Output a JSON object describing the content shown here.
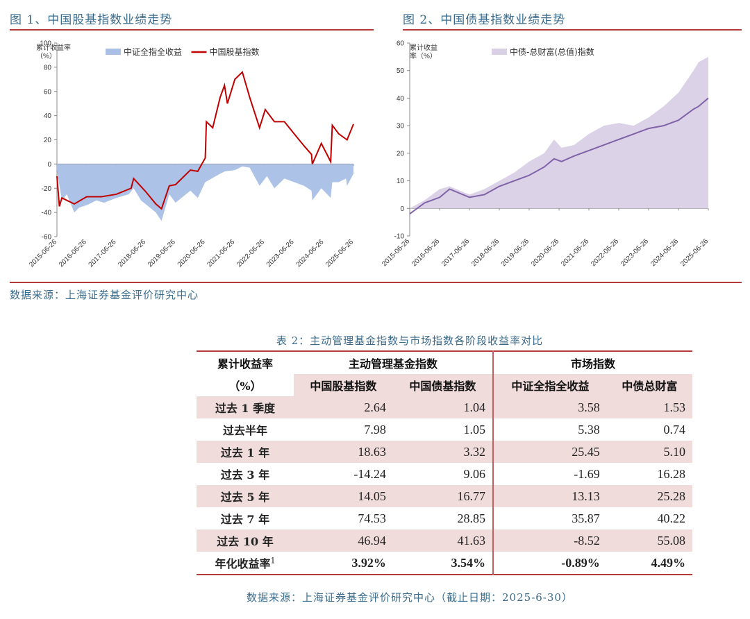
{
  "figure1": {
    "title": "图 1、中国股基指数业绩走势",
    "ylabel_line1": "累计收益率",
    "ylabel_line2": "（%）",
    "legend": [
      "中证全指全收益",
      "中国股基指数"
    ]
  },
  "figure2": {
    "title": "图 2、中国债基指数业绩走势",
    "ylabel_line1": "累计收益",
    "ylabel_line2": "率（%）",
    "legend": [
      "中债-总财富(总值)指数"
    ]
  },
  "source_top": "数据来源：上海证券基金评价研究中心",
  "colors": {
    "accent_red": "#b53a3a",
    "title_blue": "#3a6b8c",
    "csi_fill": "#a9bfe6",
    "fund_line": "#c00000",
    "bond_fill": "#d9d0e6",
    "bond_line": "#7f62a8",
    "row_shade": "#f1dcdc"
  },
  "chart_data": [
    {
      "type": "area",
      "title": "图 1、中国股基指数业绩走势",
      "ylabel": "累计收益率（%）",
      "ylim": [
        -60,
        100
      ],
      "yticks": [
        -60,
        -40,
        -20,
        0,
        20,
        40,
        60,
        80,
        100
      ],
      "x_ticks": [
        "2015-06-26",
        "2016-06-26",
        "2017-06-26",
        "2018-06-26",
        "2019-06-26",
        "2020-06-26",
        "2021-06-26",
        "2022-06-26",
        "2023-06-26",
        "2024-06-26",
        "2025-06-26"
      ],
      "legend_position": "top",
      "series": [
        {
          "name": "中证全指全收益",
          "kind": "area",
          "x": [
            "2015-06-26",
            "2015-08-26",
            "2015-10-26",
            "2016-01-26",
            "2016-03-26",
            "2016-06-26",
            "2016-10-26",
            "2017-01-26",
            "2017-06-26",
            "2017-11-26",
            "2018-01-26",
            "2018-04-26",
            "2018-07-26",
            "2018-10-26",
            "2019-01-04",
            "2019-04-10",
            "2019-06-26",
            "2019-12-26",
            "2020-03-26",
            "2020-06-26",
            "2020-12-26",
            "2021-02-26",
            "2021-06-26",
            "2021-09-26",
            "2021-12-26",
            "2022-04-26",
            "2022-07-26",
            "2022-10-26",
            "2023-02-26",
            "2023-06-26",
            "2023-10-26",
            "2024-01-26",
            "2024-02-05",
            "2024-05-26",
            "2024-09-18",
            "2024-10-08",
            "2024-12-26",
            "2025-03-26",
            "2025-04-08",
            "2025-06-26"
          ],
          "values": [
            -5,
            -30,
            -25,
            -40,
            -36,
            -34,
            -30,
            -32,
            -28,
            -25,
            -20,
            -30,
            -35,
            -40,
            -47,
            -25,
            -32,
            -22,
            -28,
            -15,
            -8,
            -6,
            -5,
            -2,
            -3,
            -18,
            -10,
            -20,
            -12,
            -15,
            -18,
            -22,
            -30,
            -20,
            -28,
            -15,
            -15,
            -12,
            -18,
            -8
          ]
        },
        {
          "name": "中国股基指数",
          "kind": "line",
          "x": [
            "2015-06-26",
            "2015-07-26",
            "2015-08-26",
            "2015-10-26",
            "2016-01-26",
            "2016-06-26",
            "2016-12-26",
            "2017-06-26",
            "2017-12-26",
            "2018-01-26",
            "2018-06-26",
            "2018-10-26",
            "2019-01-04",
            "2019-04-10",
            "2019-06-26",
            "2019-12-26",
            "2020-03-26",
            "2020-06-26",
            "2020-07-10",
            "2020-09-26",
            "2020-12-26",
            "2021-02-18",
            "2021-03-26",
            "2021-06-26",
            "2021-09-26",
            "2021-12-26",
            "2022-04-26",
            "2022-07-05",
            "2022-10-26",
            "2023-02-26",
            "2023-06-26",
            "2023-10-26",
            "2024-01-26",
            "2024-02-05",
            "2024-05-26",
            "2024-09-18",
            "2024-10-08",
            "2024-12-26",
            "2025-04-08",
            "2025-06-26"
          ],
          "values": [
            -10,
            -35,
            -28,
            -30,
            -33,
            -27,
            -27,
            -25,
            -20,
            -12,
            -23,
            -33,
            -37,
            -18,
            -17,
            -5,
            -6,
            5,
            35,
            30,
            55,
            65,
            50,
            70,
            76,
            55,
            30,
            45,
            35,
            35,
            25,
            15,
            8,
            0,
            17,
            2,
            32,
            25,
            20,
            33
          ]
        }
      ]
    },
    {
      "type": "area",
      "title": "图 2、中国债基指数业绩走势",
      "ylabel": "累计收益率（%）",
      "ylim": [
        -10,
        60
      ],
      "yticks": [
        -10,
        0,
        10,
        20,
        30,
        40,
        50,
        60
      ],
      "x_ticks": [
        "2015-06-26",
        "2016-06-26",
        "2017-06-26",
        "2018-06-26",
        "2019-06-26",
        "2020-06-26",
        "2021-06-26",
        "2022-06-26",
        "2023-06-26",
        "2024-06-26",
        "2025-06-26"
      ],
      "legend_position": "top",
      "series": [
        {
          "name": "中债-总财富(总值)指数",
          "kind": "area",
          "x": [
            "2015-06-26",
            "2015-12-26",
            "2016-06-26",
            "2016-10-26",
            "2017-06-26",
            "2017-12-26",
            "2018-06-26",
            "2018-12-26",
            "2019-06-26",
            "2019-12-26",
            "2020-04-26",
            "2020-07-26",
            "2020-12-26",
            "2021-06-26",
            "2021-12-26",
            "2022-06-26",
            "2022-12-26",
            "2023-06-26",
            "2023-12-26",
            "2024-06-26",
            "2024-12-26",
            "2025-02-26",
            "2025-06-26"
          ],
          "values": [
            0,
            3,
            7,
            8,
            5,
            7,
            10,
            13,
            17,
            20,
            25,
            22,
            23,
            27,
            30,
            31,
            30,
            33,
            37,
            42,
            50,
            53,
            55
          ]
        },
        {
          "name": "",
          "kind": "line",
          "x": [
            "2015-06-26",
            "2015-12-26",
            "2016-06-26",
            "2016-10-26",
            "2017-06-26",
            "2017-12-26",
            "2018-06-26",
            "2018-12-26",
            "2019-06-26",
            "2019-12-26",
            "2020-04-26",
            "2020-07-26",
            "2020-12-26",
            "2021-06-26",
            "2021-12-26",
            "2022-06-26",
            "2022-12-26",
            "2023-06-26",
            "2023-12-26",
            "2024-06-26",
            "2024-12-26",
            "2025-02-26",
            "2025-06-26"
          ],
          "values": [
            -2,
            2,
            4,
            7,
            4,
            5,
            8,
            10,
            12,
            15,
            18,
            17,
            19,
            21,
            23,
            25,
            27,
            29,
            30,
            32,
            36,
            37,
            40
          ]
        }
      ]
    }
  ],
  "table": {
    "title": "表 2：主动管理基金指数与市场指数各阶段收益率对比",
    "corner_line1": "累计收益率",
    "corner_line2": "（%）",
    "group_active": "主动管理基金指数",
    "group_market": "市场指数",
    "cols": [
      "中国股基指数",
      "中国债基指数",
      "中证全指全收益",
      "中债总财富"
    ],
    "rows": [
      {
        "label": "过去 1 季度",
        "values": [
          "2.64",
          "1.04",
          "3.58",
          "1.53"
        ]
      },
      {
        "label": "过去半年",
        "values": [
          "7.98",
          "1.05",
          "5.38",
          "0.74"
        ]
      },
      {
        "label": "过去 1 年",
        "values": [
          "18.63",
          "3.32",
          "25.45",
          "5.10"
        ]
      },
      {
        "label": "过去 3 年",
        "values": [
          "-14.24",
          "9.06",
          "-1.69",
          "16.28"
        ]
      },
      {
        "label": "过去 5 年",
        "values": [
          "14.05",
          "16.77",
          "13.13",
          "25.28"
        ]
      },
      {
        "label": "过去 7 年",
        "values": [
          "74.53",
          "28.85",
          "35.87",
          "40.22"
        ]
      },
      {
        "label": "过去 10 年",
        "values": [
          "46.94",
          "41.63",
          "-8.52",
          "55.08"
        ]
      }
    ],
    "annual_label": "年化收益率",
    "annual_sup": "1",
    "annual_values": [
      "3.92%",
      "3.54%",
      "-0.89%",
      "4.49%"
    ],
    "source": "数据来源：上海证券基金评价研究中心（截止日期：2025-6-30）"
  }
}
